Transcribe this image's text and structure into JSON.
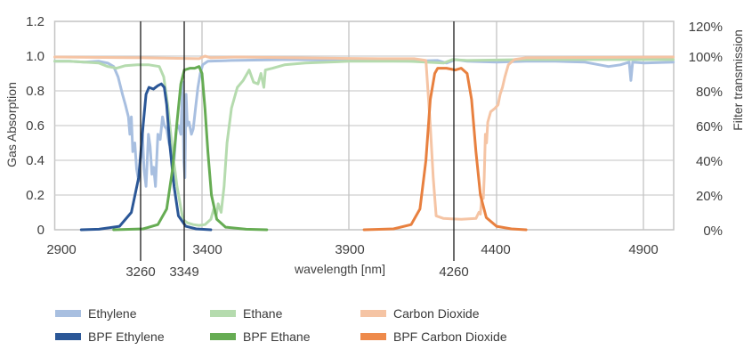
{
  "chart_data": {
    "type": "line",
    "title": "",
    "xlabel": "wavelength [nm]",
    "ylabel": "Gas Absorption",
    "y2label": "Filter transmission",
    "xlim": [
      2900,
      5000
    ],
    "ylim": [
      0,
      1.2
    ],
    "y2lim": [
      0,
      1.2
    ],
    "grid": true,
    "legend_position": "bottom",
    "x_ticks": [
      2900,
      3400,
      3900,
      4400,
      4900
    ],
    "y_ticks": [
      "0",
      "0.2",
      "0.4",
      "0.6",
      "0.8",
      "1.0",
      "1.2"
    ],
    "y2_ticks": [
      "0%",
      "20%",
      "40%",
      "60%",
      "80%",
      "100%",
      "120%"
    ],
    "marker_lines": [
      {
        "label": "3260",
        "x": 3260
      },
      {
        "label": "3349",
        "x": 3349
      },
      {
        "label": "4260",
        "x": 4260
      }
    ],
    "series": [
      {
        "name": "Ethylene",
        "axis": "left",
        "color": "#a8bfe0",
        "width": 3,
        "points": [
          [
            2900,
            0.97
          ],
          [
            2950,
            0.97
          ],
          [
            3000,
            0.965
          ],
          [
            3050,
            0.97
          ],
          [
            3080,
            0.96
          ],
          [
            3100,
            0.94
          ],
          [
            3115,
            0.88
          ],
          [
            3130,
            0.78
          ],
          [
            3140,
            0.72
          ],
          [
            3150,
            0.65
          ],
          [
            3155,
            0.55
          ],
          [
            3160,
            0.65
          ],
          [
            3165,
            0.45
          ],
          [
            3172,
            0.5
          ],
          [
            3178,
            0.35
          ],
          [
            3185,
            0.28
          ],
          [
            3192,
            0.42
          ],
          [
            3198,
            0.55
          ],
          [
            3203,
            0.35
          ],
          [
            3210,
            0.25
          ],
          [
            3218,
            0.55
          ],
          [
            3224,
            0.48
          ],
          [
            3230,
            0.32
          ],
          [
            3236,
            0.36
          ],
          [
            3242,
            0.25
          ],
          [
            3250,
            0.55
          ],
          [
            3258,
            0.52
          ],
          [
            3266,
            0.65
          ],
          [
            3272,
            0.6
          ],
          [
            3280,
            0.58
          ],
          [
            3288,
            0.5
          ],
          [
            3296,
            0.45
          ],
          [
            3305,
            0.4
          ],
          [
            3313,
            0.58
          ],
          [
            3320,
            0.6
          ],
          [
            3328,
            0.55
          ],
          [
            3334,
            0.85
          ],
          [
            3338,
            0.4
          ],
          [
            3342,
            0.3
          ],
          [
            3346,
            0.78
          ],
          [
            3350,
            0.6
          ],
          [
            3356,
            0.62
          ],
          [
            3364,
            0.55
          ],
          [
            3370,
            0.58
          ],
          [
            3378,
            0.7
          ],
          [
            3386,
            0.82
          ],
          [
            3394,
            0.9
          ],
          [
            3402,
            0.95
          ],
          [
            3420,
            0.97
          ],
          [
            3500,
            0.975
          ],
          [
            3700,
            0.98
          ],
          [
            3900,
            0.975
          ],
          [
            4100,
            0.97
          ],
          [
            4200,
            0.975
          ],
          [
            4230,
            0.96
          ],
          [
            4260,
            0.98
          ],
          [
            4300,
            0.97
          ],
          [
            4400,
            0.965
          ],
          [
            4500,
            0.97
          ],
          [
            4600,
            0.97
          ],
          [
            4700,
            0.965
          ],
          [
            4780,
            0.94
          ],
          [
            4820,
            0.95
          ],
          [
            4850,
            0.965
          ],
          [
            4856,
            0.86
          ],
          [
            4862,
            0.965
          ],
          [
            4900,
            0.96
          ],
          [
            5000,
            0.965
          ]
        ]
      },
      {
        "name": "BPF Ethylene",
        "axis": "right",
        "color": "#2b5797",
        "width": 3,
        "points": [
          [
            2990,
            0.0
          ],
          [
            3050,
            0.003
          ],
          [
            3120,
            0.02
          ],
          [
            3160,
            0.1
          ],
          [
            3185,
            0.3
          ],
          [
            3200,
            0.6
          ],
          [
            3210,
            0.78
          ],
          [
            3220,
            0.82
          ],
          [
            3235,
            0.81
          ],
          [
            3250,
            0.83
          ],
          [
            3262,
            0.84
          ],
          [
            3272,
            0.82
          ],
          [
            3280,
            0.72
          ],
          [
            3290,
            0.5
          ],
          [
            3305,
            0.25
          ],
          [
            3320,
            0.08
          ],
          [
            3345,
            0.02
          ],
          [
            3380,
            0.005
          ],
          [
            3430,
            0.0
          ]
        ]
      },
      {
        "name": "Ethane",
        "axis": "left",
        "color": "#b5dbae",
        "width": 3,
        "points": [
          [
            2900,
            0.97
          ],
          [
            2950,
            0.97
          ],
          [
            3000,
            0.965
          ],
          [
            3050,
            0.96
          ],
          [
            3080,
            0.94
          ],
          [
            3110,
            0.93
          ],
          [
            3140,
            0.945
          ],
          [
            3180,
            0.95
          ],
          [
            3220,
            0.95
          ],
          [
            3255,
            0.94
          ],
          [
            3270,
            0.88
          ],
          [
            3285,
            0.7
          ],
          [
            3300,
            0.45
          ],
          [
            3315,
            0.25
          ],
          [
            3335,
            0.06
          ],
          [
            3350,
            0.04
          ],
          [
            3370,
            0.03
          ],
          [
            3390,
            0.025
          ],
          [
            3410,
            0.03
          ],
          [
            3430,
            0.06
          ],
          [
            3440,
            0.12
          ],
          [
            3448,
            0.08
          ],
          [
            3455,
            0.15
          ],
          [
            3465,
            0.1
          ],
          [
            3475,
            0.25
          ],
          [
            3485,
            0.5
          ],
          [
            3500,
            0.7
          ],
          [
            3520,
            0.82
          ],
          [
            3540,
            0.86
          ],
          [
            3560,
            0.92
          ],
          [
            3575,
            0.85
          ],
          [
            3590,
            0.84
          ],
          [
            3600,
            0.9
          ],
          [
            3610,
            0.82
          ],
          [
            3615,
            0.92
          ],
          [
            3640,
            0.93
          ],
          [
            3680,
            0.95
          ],
          [
            3750,
            0.96
          ],
          [
            3900,
            0.97
          ],
          [
            4100,
            0.97
          ],
          [
            4220,
            0.96
          ],
          [
            4250,
            0.98
          ],
          [
            4300,
            0.975
          ],
          [
            4500,
            0.98
          ],
          [
            5000,
            0.98
          ]
        ]
      },
      {
        "name": "BPF Ethane",
        "axis": "right",
        "color": "#66ac53",
        "width": 3,
        "points": [
          [
            3100,
            0.0
          ],
          [
            3200,
            0.005
          ],
          [
            3250,
            0.03
          ],
          [
            3280,
            0.12
          ],
          [
            3300,
            0.35
          ],
          [
            3315,
            0.62
          ],
          [
            3328,
            0.84
          ],
          [
            3340,
            0.92
          ],
          [
            3360,
            0.93
          ],
          [
            3375,
            0.93
          ],
          [
            3390,
            0.94
          ],
          [
            3400,
            0.9
          ],
          [
            3410,
            0.7
          ],
          [
            3420,
            0.45
          ],
          [
            3432,
            0.2
          ],
          [
            3450,
            0.06
          ],
          [
            3480,
            0.015
          ],
          [
            3550,
            0.003
          ],
          [
            3620,
            0.0
          ]
        ]
      },
      {
        "name": "Carbon Dioxide",
        "axis": "left",
        "color": "#f5c4a4",
        "width": 3,
        "points": [
          [
            2900,
            0.995
          ],
          [
            3200,
            0.99
          ],
          [
            3390,
            0.985
          ],
          [
            3410,
            1.0
          ],
          [
            3430,
            0.99
          ],
          [
            3520,
            0.995
          ],
          [
            3700,
            0.99
          ],
          [
            4000,
            0.985
          ],
          [
            4120,
            0.985
          ],
          [
            4160,
            0.975
          ],
          [
            4175,
            0.6
          ],
          [
            4185,
            0.3
          ],
          [
            4195,
            0.08
          ],
          [
            4220,
            0.065
          ],
          [
            4280,
            0.06
          ],
          [
            4330,
            0.065
          ],
          [
            4340,
            0.1
          ],
          [
            4345,
            0.09
          ],
          [
            4350,
            0.2
          ],
          [
            4355,
            0.18
          ],
          [
            4358,
            0.3
          ],
          [
            4362,
            0.55
          ],
          [
            4366,
            0.5
          ],
          [
            4370,
            0.62
          ],
          [
            4380,
            0.68
          ],
          [
            4395,
            0.7
          ],
          [
            4405,
            0.72
          ],
          [
            4412,
            0.78
          ],
          [
            4420,
            0.82
          ],
          [
            4428,
            0.88
          ],
          [
            4440,
            0.95
          ],
          [
            4460,
            0.98
          ],
          [
            4500,
            0.99
          ],
          [
            5000,
            0.995
          ]
        ]
      },
      {
        "name": "BPF Carbon Dioxide",
        "axis": "right",
        "color": "#e8803f",
        "width": 3,
        "points": [
          [
            3950,
            0.0
          ],
          [
            4050,
            0.005
          ],
          [
            4110,
            0.03
          ],
          [
            4140,
            0.12
          ],
          [
            4160,
            0.4
          ],
          [
            4175,
            0.75
          ],
          [
            4190,
            0.9
          ],
          [
            4200,
            0.93
          ],
          [
            4230,
            0.93
          ],
          [
            4260,
            0.92
          ],
          [
            4280,
            0.93
          ],
          [
            4300,
            0.9
          ],
          [
            4315,
            0.75
          ],
          [
            4330,
            0.45
          ],
          [
            4345,
            0.2
          ],
          [
            4365,
            0.07
          ],
          [
            4400,
            0.02
          ],
          [
            4450,
            0.005
          ],
          [
            4500,
            0.0
          ]
        ]
      }
    ]
  },
  "legend": {
    "items": [
      {
        "label": "Ethylene",
        "color": "#a8bfe0"
      },
      {
        "label": "BPF Ethylene",
        "color": "#2b5797"
      },
      {
        "label": "Ethane",
        "color": "#b5dbae"
      },
      {
        "label": "BPF Ethane",
        "color": "#66ac53"
      },
      {
        "label": "Carbon Dioxide",
        "color": "#f5c4a4"
      },
      {
        "label": "BPF Carbon Dioxide",
        "color": "#ee8a4b"
      }
    ]
  },
  "axes": {
    "x_title": "wavelength [nm]",
    "y_title": "Gas Absorption",
    "y2_title": "Filter transmission",
    "x_ticks": [
      "2900",
      "3400",
      "3900",
      "4400",
      "4900"
    ],
    "y_ticks": [
      "0",
      "0.2",
      "0.4",
      "0.6",
      "0.8",
      "1.0",
      "1.2"
    ],
    "y2_ticks": [
      "0%",
      "20%",
      "40%",
      "60%",
      "80%",
      "100%",
      "120%"
    ],
    "markers": [
      "3260",
      "3349",
      "4260"
    ]
  }
}
